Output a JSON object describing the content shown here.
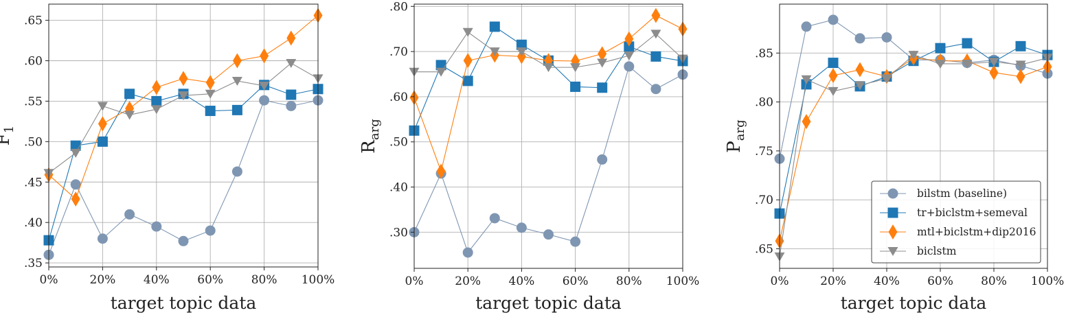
{
  "x_ticks": [
    "0%",
    "10%",
    "20%",
    "30%",
    "40%",
    "50%",
    "60%",
    "70%",
    "80%",
    "90%",
    "100%"
  ],
  "x_tick_labels": [
    "0%",
    "20%",
    "40%",
    "60%",
    "80%",
    "100%"
  ],
  "series_styles": [
    {
      "key": "bilstm",
      "label": "bilstm (baseline)",
      "color": "#7f96b2",
      "marker": "circle"
    },
    {
      "key": "tr",
      "label": "tr+biclstm+semeval",
      "color": "#1f77b4",
      "marker": "square"
    },
    {
      "key": "mtl",
      "label": "mtl+biclstm+dip2016",
      "color": "#ff7f0e",
      "marker": "diamond"
    },
    {
      "key": "biclstm",
      "label": "biclstm",
      "color": "#8c8c8c",
      "marker": "triangle_down"
    }
  ],
  "chart_data": [
    {
      "type": "line",
      "xlabel": "target topic data",
      "ylabel": "F",
      "ylabel_sub": "1",
      "ylim": [
        0.345,
        0.67
      ],
      "yticks": [
        0.35,
        0.4,
        0.45,
        0.5,
        0.55,
        0.6,
        0.65
      ],
      "ytick_labels": [
        ".35",
        ".40",
        ".45",
        ".50",
        ".55",
        ".60",
        ".65"
      ],
      "grid": true,
      "x": [
        0,
        10,
        20,
        30,
        40,
        50,
        60,
        70,
        80,
        90,
        100
      ],
      "series": [
        {
          "name": "bilstm (baseline)",
          "values": [
            0.36,
            0.447,
            0.38,
            0.41,
            0.395,
            0.377,
            0.39,
            0.463,
            0.551,
            0.544,
            0.551
          ]
        },
        {
          "name": "tr+biclstm+semeval",
          "values": [
            0.378,
            0.495,
            0.5,
            0.559,
            0.55,
            0.559,
            0.538,
            0.539,
            0.57,
            0.558,
            0.565
          ]
        },
        {
          "name": "mtl+biclstm+dip2016",
          "values": [
            0.459,
            0.429,
            0.522,
            0.541,
            0.567,
            0.578,
            0.573,
            0.6,
            0.606,
            0.628,
            0.656
          ]
        },
        {
          "name": "biclstm",
          "values": [
            0.461,
            0.486,
            0.544,
            0.533,
            0.54,
            0.557,
            0.559,
            0.575,
            0.569,
            0.597,
            0.578
          ]
        }
      ]
    },
    {
      "type": "line",
      "xlabel": "target topic data",
      "ylabel": "R",
      "ylabel_sub": "arg",
      "ylim": [
        0.22,
        0.805
      ],
      "yticks": [
        0.3,
        0.4,
        0.5,
        0.6,
        0.7,
        0.8
      ],
      "ytick_labels": [
        ".30",
        ".40",
        ".50",
        ".60",
        ".70",
        ".80"
      ],
      "grid": true,
      "x": [
        0,
        10,
        20,
        30,
        40,
        50,
        60,
        70,
        80,
        90,
        100
      ],
      "series": [
        {
          "name": "bilstm (baseline)",
          "values": [
            0.3,
            0.43,
            0.255,
            0.331,
            0.31,
            0.295,
            0.279,
            0.461,
            0.667,
            0.617,
            0.649
          ]
        },
        {
          "name": "tr+biclstm+semeval",
          "values": [
            0.525,
            0.67,
            0.635,
            0.755,
            0.715,
            0.68,
            0.622,
            0.62,
            0.711,
            0.689,
            0.679
          ]
        },
        {
          "name": "mtl+biclstm+dip2016",
          "values": [
            0.598,
            0.435,
            0.68,
            0.692,
            0.689,
            0.68,
            0.679,
            0.695,
            0.728,
            0.78,
            0.75
          ]
        },
        {
          "name": "biclstm",
          "values": [
            0.655,
            0.655,
            0.743,
            0.7,
            0.7,
            0.665,
            0.665,
            0.675,
            0.691,
            0.739,
            0.684
          ]
        }
      ]
    },
    {
      "type": "line",
      "xlabel": "target topic data",
      "ylabel": "P",
      "ylabel_sub": "arg",
      "ylim": [
        0.63,
        0.9
      ],
      "yticks": [
        0.65,
        0.7,
        0.75,
        0.8,
        0.85
      ],
      "ytick_labels": [
        ".65",
        ".70",
        ".75",
        ".80",
        ".85"
      ],
      "grid": true,
      "legend": "lower-right",
      "x": [
        0,
        10,
        20,
        30,
        40,
        50,
        60,
        70,
        80,
        90,
        100
      ],
      "series": [
        {
          "name": "bilstm (baseline)",
          "values": [
            0.742,
            0.877,
            0.884,
            0.865,
            0.866,
            0.843,
            0.843,
            0.84,
            0.843,
            0.837,
            0.829
          ]
        },
        {
          "name": "tr+biclstm+semeval",
          "values": [
            0.686,
            0.818,
            0.84,
            0.816,
            0.826,
            0.842,
            0.855,
            0.86,
            0.841,
            0.857,
            0.848
          ]
        },
        {
          "name": "mtl+biclstm+dip2016",
          "values": [
            0.658,
            0.78,
            0.827,
            0.833,
            0.826,
            0.845,
            0.842,
            0.842,
            0.83,
            0.826,
            0.836
          ]
        },
        {
          "name": "biclstm",
          "values": [
            0.642,
            0.823,
            0.811,
            0.817,
            0.824,
            0.848,
            0.839,
            0.839,
            0.841,
            0.838,
            0.845
          ]
        }
      ]
    }
  ]
}
